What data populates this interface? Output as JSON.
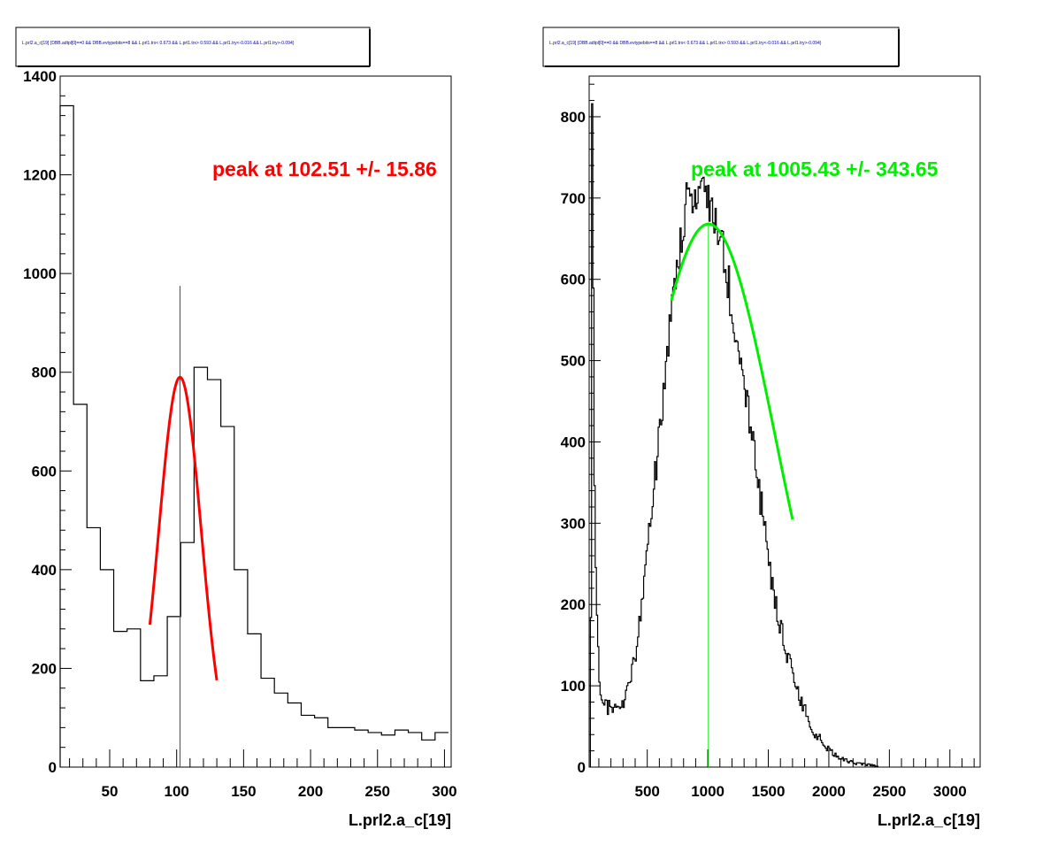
{
  "chart_data": [
    {
      "type": "histogram",
      "title": "L.prl2.a_c[19] {DBB.adtpl[0]==0 && DBB.evtypebits==8 &&  L.prl1.trx< 0.673 && L.prl1.trx> 0.593 && L.prl1.try<-0.016 && L.prl1.try>-0.094}",
      "xlabel": "L.prl2.a_c[19]",
      "ylabel": "",
      "xlim": [
        13,
        305
      ],
      "ylim": [
        0,
        1400
      ],
      "xticks": [
        50,
        100,
        150,
        200,
        250,
        300
      ],
      "yticks": [
        0,
        200,
        400,
        600,
        800,
        1000,
        1200,
        1400
      ],
      "bin_width": 10,
      "bin_starts": [
        13,
        23,
        33,
        43,
        53,
        63,
        73,
        83,
        93,
        103,
        113,
        123,
        133,
        143,
        153,
        163,
        173,
        183,
        193,
        203,
        213,
        223,
        233,
        243,
        253,
        263,
        273,
        283,
        293
      ],
      "values": [
        1340,
        735,
        485,
        400,
        275,
        280,
        175,
        185,
        305,
        455,
        810,
        785,
        690,
        400,
        270,
        180,
        150,
        130,
        105,
        100,
        80,
        80,
        75,
        70,
        65,
        75,
        70,
        55,
        70
      ],
      "fit": {
        "type": "gaussian",
        "mean": 102.51,
        "sigma": 15.86,
        "amplitude": 790,
        "range": [
          80,
          130
        ],
        "color": "#ff0000"
      },
      "peak_marker": 102.51,
      "annotation": "peak at 102.51 +/- 15.86",
      "annotation_color": "#ff0000",
      "line_color": "#000000"
    },
    {
      "type": "histogram",
      "title": "L.prl2.a_c[19] {DBB.adtpl[0]==0 && DBB.evtypebits==8 &&  L.prl1.trx< 0.673 && L.prl1.trx> 0.593 && L.prl1.try<-0.016 && L.prl1.try>-0.094}",
      "xlabel": "L.prl2.a_c[19]",
      "ylabel": "",
      "xlim": [
        20,
        3250
      ],
      "ylim": [
        0,
        850
      ],
      "xticks": [
        500,
        1000,
        1500,
        2000,
        2500,
        3000
      ],
      "yticks": [
        0,
        100,
        200,
        300,
        400,
        500,
        600,
        700,
        800
      ],
      "bin_width": 10,
      "curve_x": [
        30,
        40,
        50,
        60,
        70,
        80,
        90,
        100,
        110,
        130,
        150,
        200,
        250,
        300,
        350,
        400,
        450,
        500,
        550,
        600,
        650,
        700,
        750,
        800,
        850,
        900,
        950,
        1000,
        1050,
        1100,
        1150,
        1200,
        1250,
        1300,
        1350,
        1400,
        1450,
        1500,
        1550,
        1600,
        1650,
        1700,
        1750,
        1800,
        1850,
        1900,
        1950,
        2000,
        2050,
        2100,
        2150,
        2200,
        2250,
        2300,
        2350,
        2400
      ],
      "curve_y": [
        170,
        810,
        600,
        360,
        250,
        180,
        140,
        110,
        95,
        80,
        75,
        72,
        70,
        80,
        100,
        140,
        200,
        270,
        340,
        420,
        490,
        560,
        620,
        680,
        710,
        700,
        720,
        690,
        670,
        650,
        610,
        560,
        520,
        470,
        420,
        360,
        310,
        250,
        210,
        170,
        140,
        110,
        85,
        70,
        50,
        38,
        28,
        20,
        14,
        10,
        8,
        6,
        5,
        3,
        2,
        1
      ],
      "fit": {
        "type": "gaussian",
        "mean": 1005.43,
        "sigma": 343.65,
        "amplitude": 668,
        "range": [
          700,
          1700
        ],
        "color": "#00ee00"
      },
      "peak_marker": 1005.43,
      "annotation": "peak at 1005.43 +/- 343.65",
      "annotation_color": "#00ee00",
      "line_color": "#000000"
    }
  ]
}
